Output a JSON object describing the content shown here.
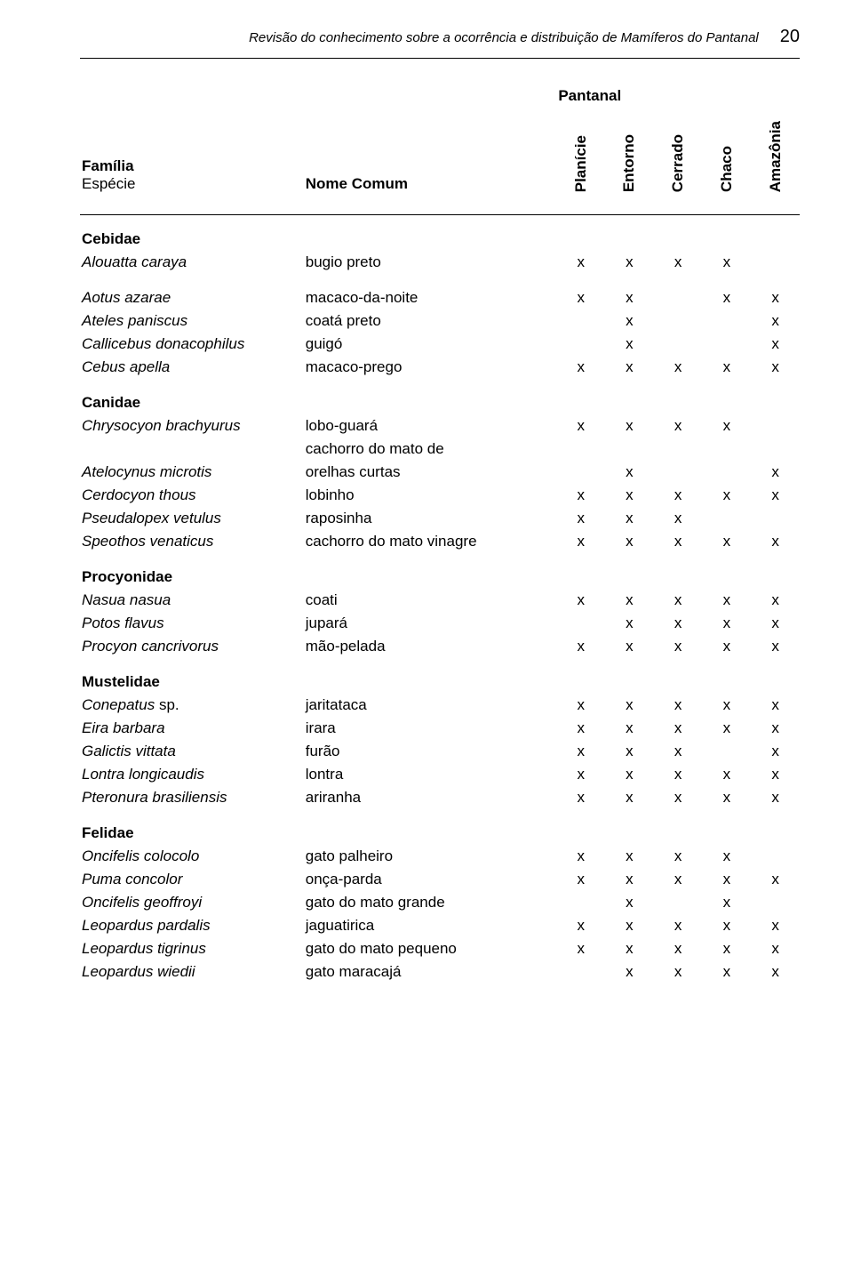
{
  "running_header": {
    "text": "Revisão do conhecimento sobre a ocorrência e distribuição de Mamíferos do Pantanal",
    "page_number": "20"
  },
  "table_header": {
    "col1_line1": "Família",
    "col1_line2": "Espécie",
    "col2": "Nome Comum",
    "col3": "Pantanal",
    "regions": [
      "Planície",
      "Entorno",
      "Cerrado",
      "Chaco",
      "Amazônia"
    ]
  },
  "groups": [
    {
      "family": "Cebidae",
      "rows": [
        {
          "species": "Alouatta caraya",
          "common": "bugio preto",
          "marks": [
            "x",
            "x",
            "x",
            "x",
            ""
          ]
        }
      ]
    },
    {
      "family": "",
      "rows": [
        {
          "species": "Aotus azarae",
          "common": "macaco-da-noite",
          "marks": [
            "x",
            "x",
            "",
            "x",
            "x"
          ]
        },
        {
          "species": "Ateles paniscus",
          "common": "coatá preto",
          "marks": [
            "",
            "x",
            "",
            "",
            "x"
          ]
        },
        {
          "species": "Callicebus donacophilus",
          "common": "guigó",
          "marks": [
            "",
            "x",
            "",
            "",
            "x"
          ]
        },
        {
          "species": "Cebus apella",
          "common": "macaco-prego",
          "marks": [
            "x",
            "x",
            "x",
            "x",
            "x"
          ]
        }
      ]
    },
    {
      "family": "Canidae",
      "rows": [
        {
          "species": "Chrysocyon brachyurus",
          "common": "lobo-guará",
          "marks": [
            "x",
            "x",
            "x",
            "x",
            ""
          ]
        },
        {
          "species": "",
          "common": "cachorro do mato de",
          "marks": [
            "",
            "",
            "",
            "",
            ""
          ]
        },
        {
          "species": "Atelocynus microtis",
          "common": "orelhas curtas",
          "marks": [
            "",
            "x",
            "",
            "",
            "x"
          ]
        },
        {
          "species": "Cerdocyon thous",
          "common": "lobinho",
          "marks": [
            "x",
            "x",
            "x",
            "x",
            "x"
          ]
        },
        {
          "species": "Pseudalopex vetulus",
          "common": "raposinha",
          "marks": [
            "x",
            "x",
            "x",
            "",
            ""
          ]
        },
        {
          "species": "Speothos venaticus",
          "common": "cachorro do mato vinagre",
          "marks": [
            "x",
            "x",
            "x",
            "x",
            "x"
          ]
        }
      ]
    },
    {
      "family": "Procyonidae",
      "rows": [
        {
          "species": "Nasua nasua",
          "common": "coati",
          "marks": [
            "x",
            "x",
            "x",
            "x",
            "x"
          ]
        },
        {
          "species": "Potos flavus",
          "common": "jupará",
          "marks": [
            "",
            "x",
            "x",
            "x",
            "x"
          ]
        },
        {
          "species": "Procyon cancrivorus",
          "common": "mão-pelada",
          "marks": [
            "x",
            "x",
            "x",
            "x",
            "x"
          ]
        }
      ]
    },
    {
      "family": "Mustelidae",
      "rows": [
        {
          "species_html": "Conepatus",
          "species_suffix": " sp.",
          "common": "jaritataca",
          "marks": [
            "x",
            "x",
            "x",
            "x",
            "x"
          ]
        },
        {
          "species": "Eira barbara",
          "common": "irara",
          "marks": [
            "x",
            "x",
            "x",
            "x",
            "x"
          ]
        },
        {
          "species": "Galictis vittata",
          "common": "furão",
          "marks": [
            "x",
            "x",
            "x",
            "",
            "x"
          ]
        },
        {
          "species": "Lontra longicaudis",
          "common": "lontra",
          "marks": [
            "x",
            "x",
            "x",
            "x",
            "x"
          ]
        },
        {
          "species": "Pteronura brasiliensis",
          "common": "ariranha",
          "marks": [
            "x",
            "x",
            "x",
            "x",
            "x"
          ]
        }
      ]
    },
    {
      "family": "Felidae",
      "rows": [
        {
          "species": "Oncifelis colocolo",
          "common": "gato palheiro",
          "marks": [
            "x",
            "x",
            "x",
            "x",
            ""
          ]
        },
        {
          "species": "Puma concolor",
          "common": "onça-parda",
          "marks": [
            "x",
            "x",
            "x",
            "x",
            "x"
          ]
        },
        {
          "species": "Oncifelis geoffroyi",
          "common": "gato do mato grande",
          "marks": [
            "",
            "x",
            "",
            "x",
            ""
          ]
        },
        {
          "species": "Leopardus pardalis",
          "common": "jaguatirica",
          "marks": [
            "x",
            "x",
            "x",
            "x",
            "x"
          ]
        },
        {
          "species": "Leopardus tigrinus",
          "common": "gato do mato pequeno",
          "marks": [
            "x",
            "x",
            "x",
            "x",
            "x"
          ]
        },
        {
          "species": "Leopardus wiedii",
          "common": "gato maracajá",
          "marks": [
            "",
            "x",
            "x",
            "x",
            "x"
          ]
        }
      ]
    }
  ]
}
